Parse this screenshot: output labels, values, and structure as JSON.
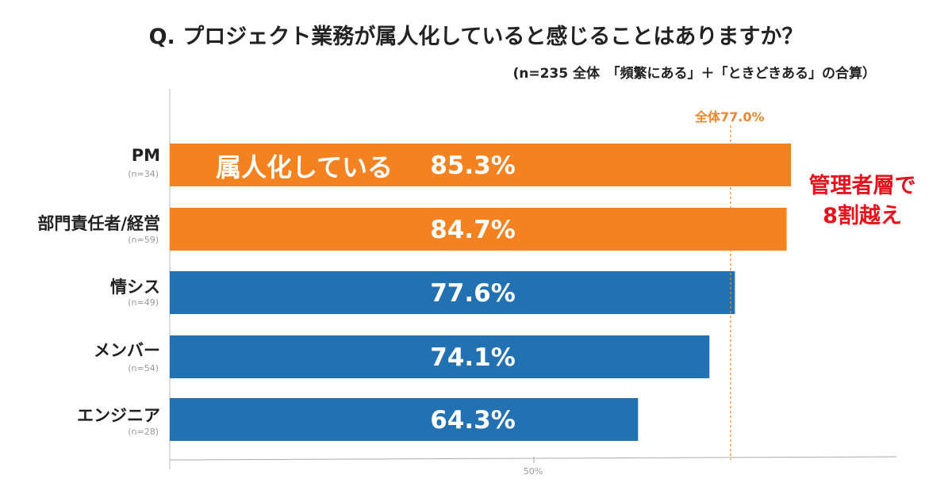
{
  "title": "Q.  プロジェクト業務が属人化していると感じることはありますか？",
  "subtitle": "(n=235 全体　「頻繁にある」＋「ときどきある」の合算）",
  "chart_data": {
    "type": "bar",
    "orientation": "horizontal",
    "categories": [
      "PM",
      "部門責任者/経営",
      "情シス",
      "メンバー",
      "エンジニア"
    ],
    "sample_sizes": [
      "(n=34)",
      "(n=59)",
      "(n=49)",
      "(n=54)",
      "(n=28)"
    ],
    "values": [
      85.3,
      84.7,
      77.6,
      74.1,
      64.3
    ],
    "value_labels": [
      "85.3%",
      "84.7%",
      "77.6%",
      "74.1%",
      "64.3%"
    ],
    "bar_colors": [
      "#f58220",
      "#f58220",
      "#2271b3",
      "#2271b3",
      "#2271b3"
    ],
    "x_ticks": [
      "50%"
    ],
    "xlim": [
      0,
      100
    ],
    "reference_line": {
      "value": 77.0,
      "label": "全体77.0%",
      "color": "#f0852a"
    },
    "in_bar_label": "属人化している",
    "callout": {
      "line1": "管理者層で",
      "line2": "8割越え",
      "color": "#e8101a"
    },
    "grid": false
  }
}
